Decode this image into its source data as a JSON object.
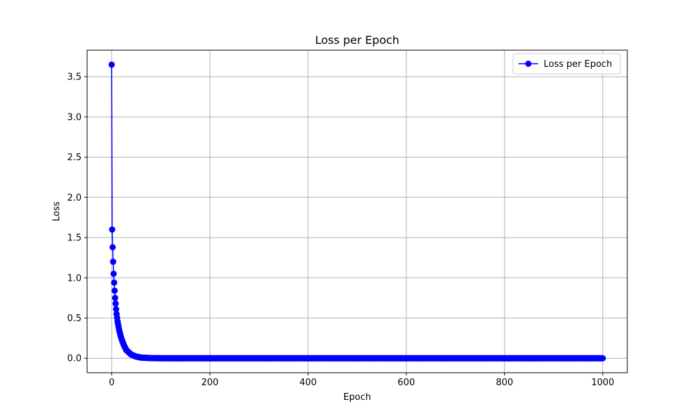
{
  "chart_data": {
    "type": "line",
    "title": "Loss per Epoch",
    "xlabel": "Epoch",
    "ylabel": "Loss",
    "xlim": [
      -50,
      1050
    ],
    "ylim": [
      -0.18,
      3.83
    ],
    "xticks": [
      0,
      200,
      400,
      600,
      800,
      1000
    ],
    "yticks": [
      0.0,
      0.5,
      1.0,
      1.5,
      2.0,
      2.5,
      3.0,
      3.5
    ],
    "grid": true,
    "legend_position": "top-right",
    "series": [
      {
        "name": "Loss per Epoch",
        "color": "#0000ff",
        "marker": "circle",
        "x_start": 0,
        "x_end": 1000,
        "x_step": 1,
        "key_values": [
          [
            0,
            3.65
          ],
          [
            1,
            1.6
          ],
          [
            2,
            1.38
          ],
          [
            3,
            1.2
          ],
          [
            4,
            1.05
          ],
          [
            5,
            0.94
          ],
          [
            6,
            0.84
          ],
          [
            7,
            0.75
          ],
          [
            8,
            0.68
          ],
          [
            9,
            0.61
          ],
          [
            10,
            0.55
          ],
          [
            12,
            0.46
          ],
          [
            14,
            0.39
          ],
          [
            16,
            0.33
          ],
          [
            20,
            0.24
          ],
          [
            25,
            0.16
          ],
          [
            30,
            0.1
          ],
          [
            40,
            0.045
          ],
          [
            50,
            0.02
          ],
          [
            60,
            0.008
          ],
          [
            80,
            0.002
          ],
          [
            100,
            0.0
          ],
          [
            1000,
            0.0
          ]
        ]
      }
    ]
  }
}
